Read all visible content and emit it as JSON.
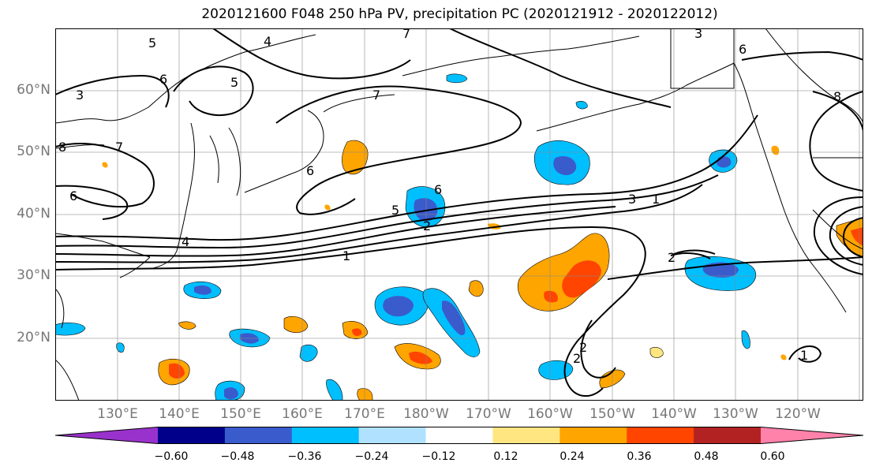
{
  "title": "2020121600 F048 250 hPa PV, precipitation PC (2020121912 - 2020122012)",
  "lat_labels": [
    "60°N",
    "50°N",
    "40°N",
    "30°N",
    "20°N"
  ],
  "lon_labels": [
    "130°E",
    "140°E",
    "150°E",
    "160°E",
    "170°E",
    "180°W",
    "170°W",
    "160°W",
    "150°W",
    "140°W",
    "130°W",
    "120°W"
  ],
  "colorbar": {
    "ticks": [
      "−0.60",
      "−0.48",
      "−0.36",
      "−0.24",
      "−0.12",
      "0.12",
      "0.24",
      "0.36",
      "0.48",
      "0.60"
    ],
    "colors": [
      "#9932cc",
      "#00008b",
      "#3a5bcc",
      "#00bfff",
      "#b0e2ff",
      "#ffffff",
      "#ffe680",
      "#ffa500",
      "#ff4500",
      "#b22222",
      "#ff82ab"
    ]
  },
  "contour_labels": [
    "5",
    "4",
    "7",
    "3",
    "6",
    "8",
    "7",
    "6",
    "6",
    "5",
    "4",
    "6",
    "5",
    "2",
    "1",
    "3",
    "1",
    "2",
    "2",
    "6",
    "3",
    "8",
    "1",
    "7",
    "2"
  ]
}
